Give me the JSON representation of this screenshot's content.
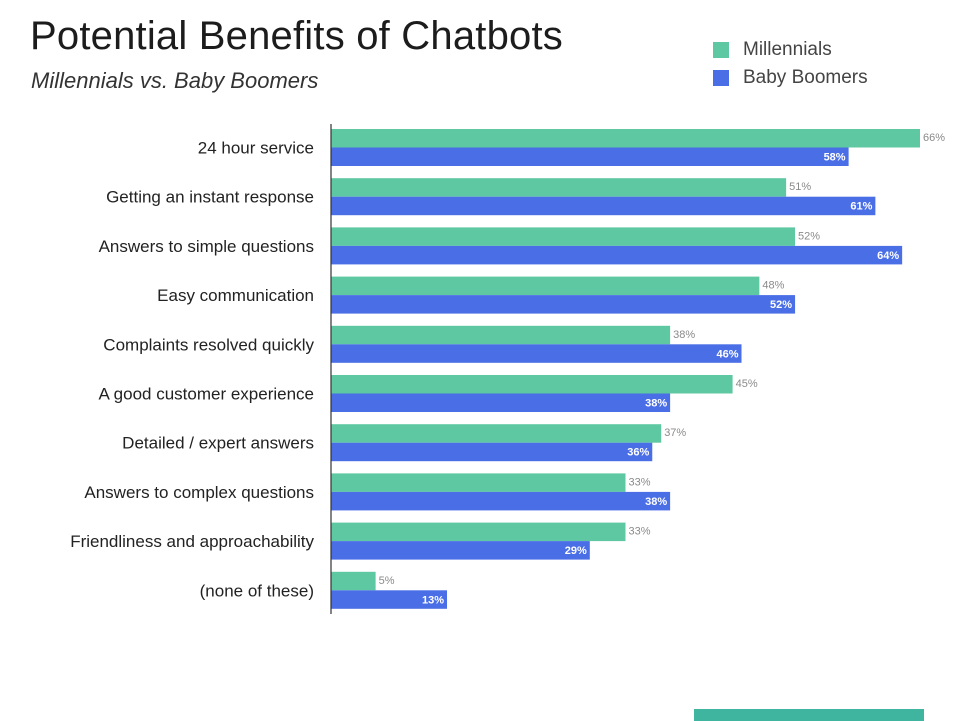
{
  "header": {
    "title": "Potential Benefits of Chatbots",
    "subtitle": "Millennials vs. Baby Boomers"
  },
  "legend": {
    "items": [
      {
        "label": "Millennials",
        "color": "#5ec8a2"
      },
      {
        "label": "Baby Boomers",
        "color": "#4a6ee6"
      }
    ]
  },
  "chart_data": {
    "type": "bar",
    "orientation": "horizontal",
    "categories": [
      "24 hour service",
      "Getting an instant response",
      "Answers to simple questions",
      "Easy communication",
      "Complaints resolved quickly",
      "A good customer experience",
      "Detailed / expert answers",
      "Answers to complex questions",
      "Friendliness and approachability",
      "(none of these)"
    ],
    "series": [
      {
        "name": "Millennials",
        "color": "#5ec8a2",
        "values": [
          66,
          51,
          52,
          48,
          38,
          45,
          37,
          33,
          33,
          5
        ]
      },
      {
        "name": "Baby Boomers",
        "color": "#4a6ee6",
        "values": [
          58,
          61,
          64,
          52,
          46,
          38,
          36,
          38,
          29,
          13
        ]
      }
    ],
    "value_suffix": "%",
    "title": "Potential Benefits of Chatbots",
    "subtitle": "Millennials vs. Baby Boomers",
    "xlim": [
      0,
      66
    ],
    "grid": false,
    "legend_position": "top-right"
  }
}
